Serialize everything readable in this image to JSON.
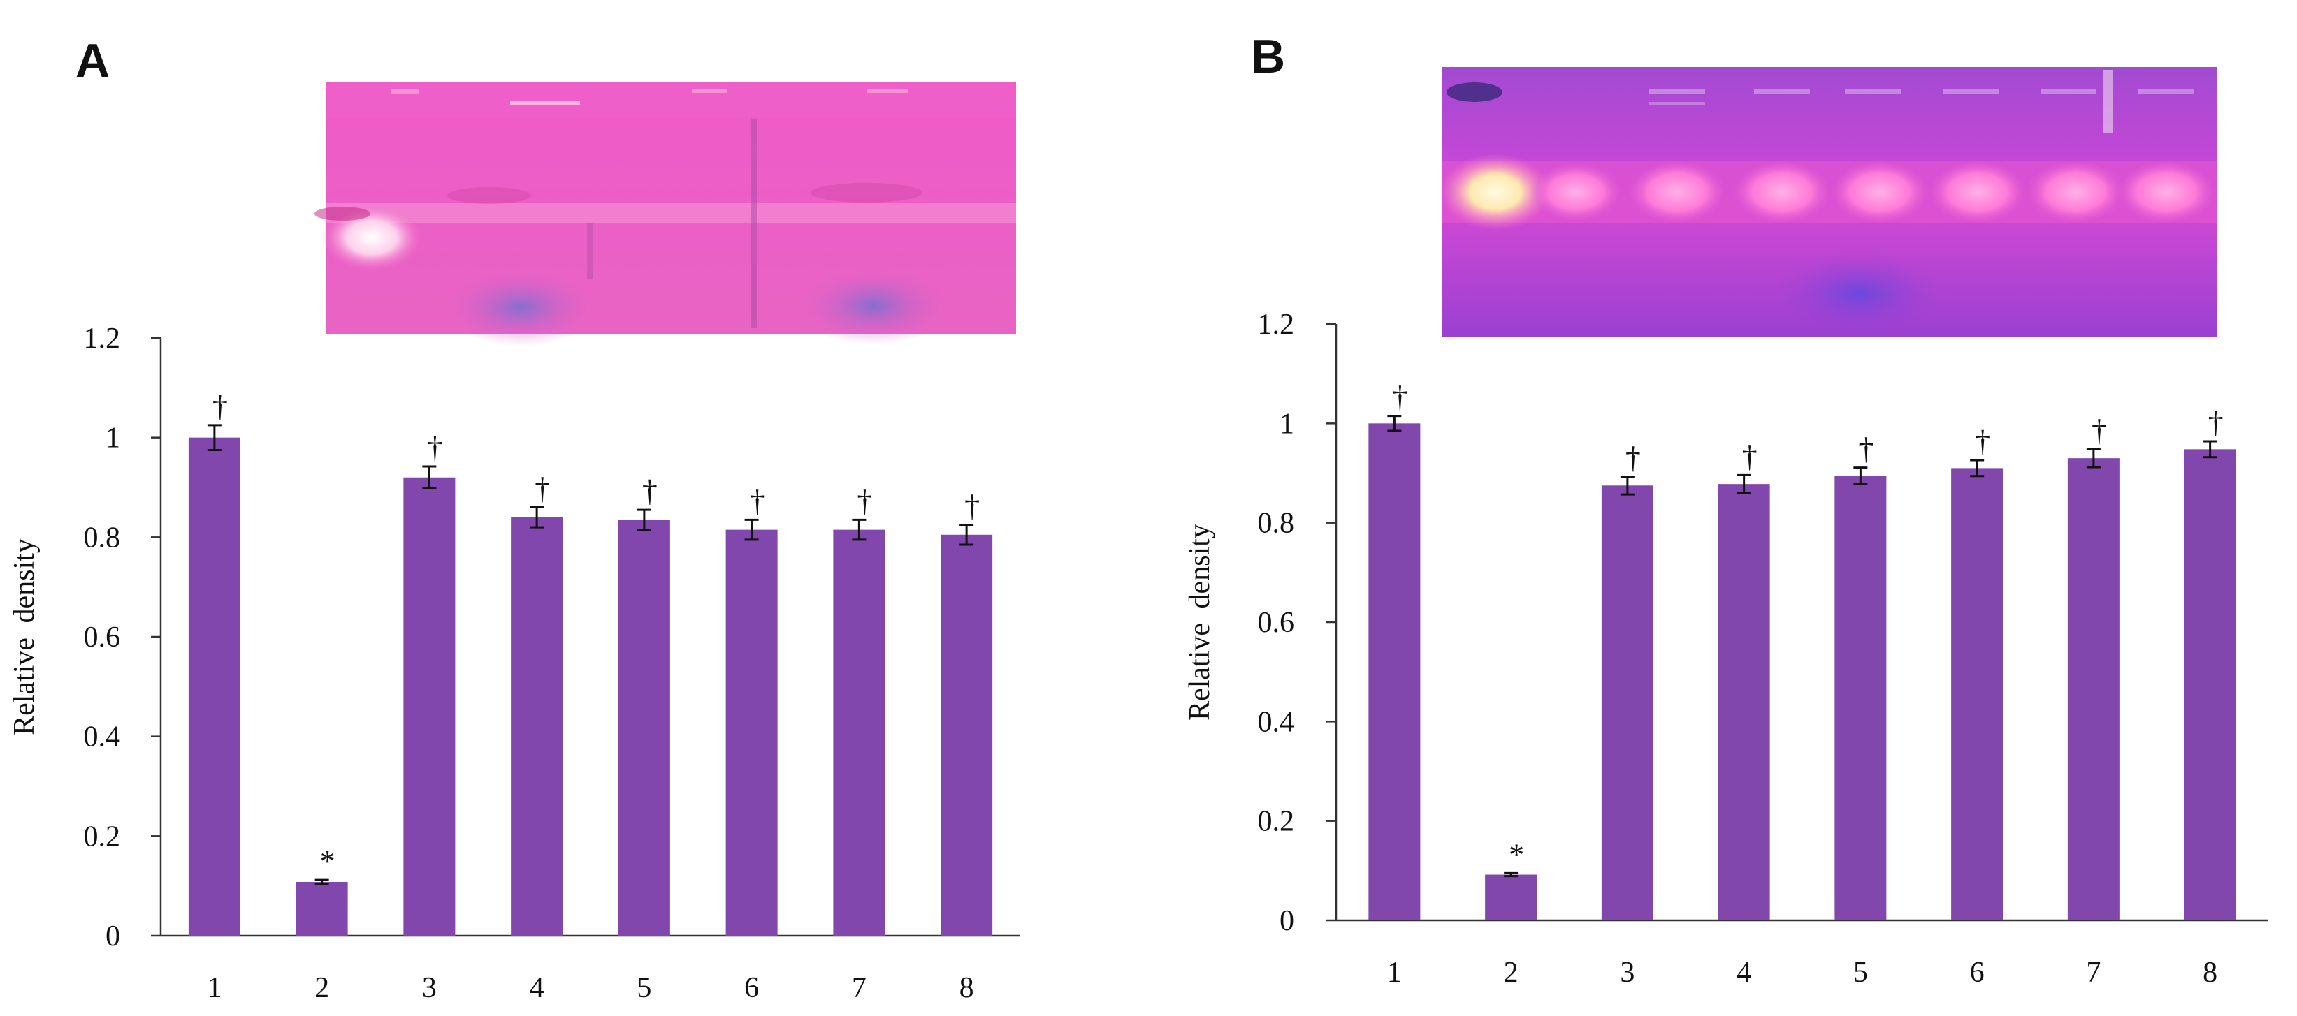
{
  "chart_data": [
    {
      "panel": "A",
      "type": "bar",
      "categories": [
        "1",
        "2",
        "3",
        "4",
        "5",
        "6",
        "7",
        "8"
      ],
      "values": [
        1.0,
        0.108,
        0.92,
        0.84,
        0.835,
        0.815,
        0.815,
        0.805
      ],
      "errors": [
        0.025,
        0.004,
        0.022,
        0.02,
        0.02,
        0.02,
        0.02,
        0.02
      ],
      "annotations": [
        "†",
        "*",
        "†",
        "†",
        "†",
        "†",
        "†",
        "†"
      ],
      "ylabel": "Relative density",
      "xlabel": "",
      "ylim": [
        0,
        1.2
      ],
      "yticks": [
        "0",
        "0.2",
        "0.4",
        "0.6",
        "0.8",
        "1",
        "1.2"
      ],
      "bar_color": "#8147ad",
      "gel_image": "pink zymogram gel with clear band at lane 1"
    },
    {
      "panel": "B",
      "type": "bar",
      "categories": [
        "1",
        "2",
        "3",
        "4",
        "5",
        "6",
        "7",
        "8"
      ],
      "values": [
        1.0,
        0.092,
        0.875,
        0.878,
        0.895,
        0.91,
        0.93,
        0.948
      ],
      "errors": [
        0.015,
        0.003,
        0.018,
        0.018,
        0.016,
        0.016,
        0.018,
        0.016
      ],
      "annotations": [
        "†",
        "*",
        "†",
        "†",
        "†",
        "†",
        "†",
        "†"
      ],
      "ylabel": "Relative density",
      "xlabel": "",
      "ylim": [
        0,
        1.2
      ],
      "yticks": [
        "0",
        "0.2",
        "0.4",
        "0.6",
        "0.8",
        "1",
        "1.2"
      ],
      "bar_color": "#8147ad",
      "gel_image": "purple-magenta zymogram gel with bright band at lane 1"
    }
  ]
}
